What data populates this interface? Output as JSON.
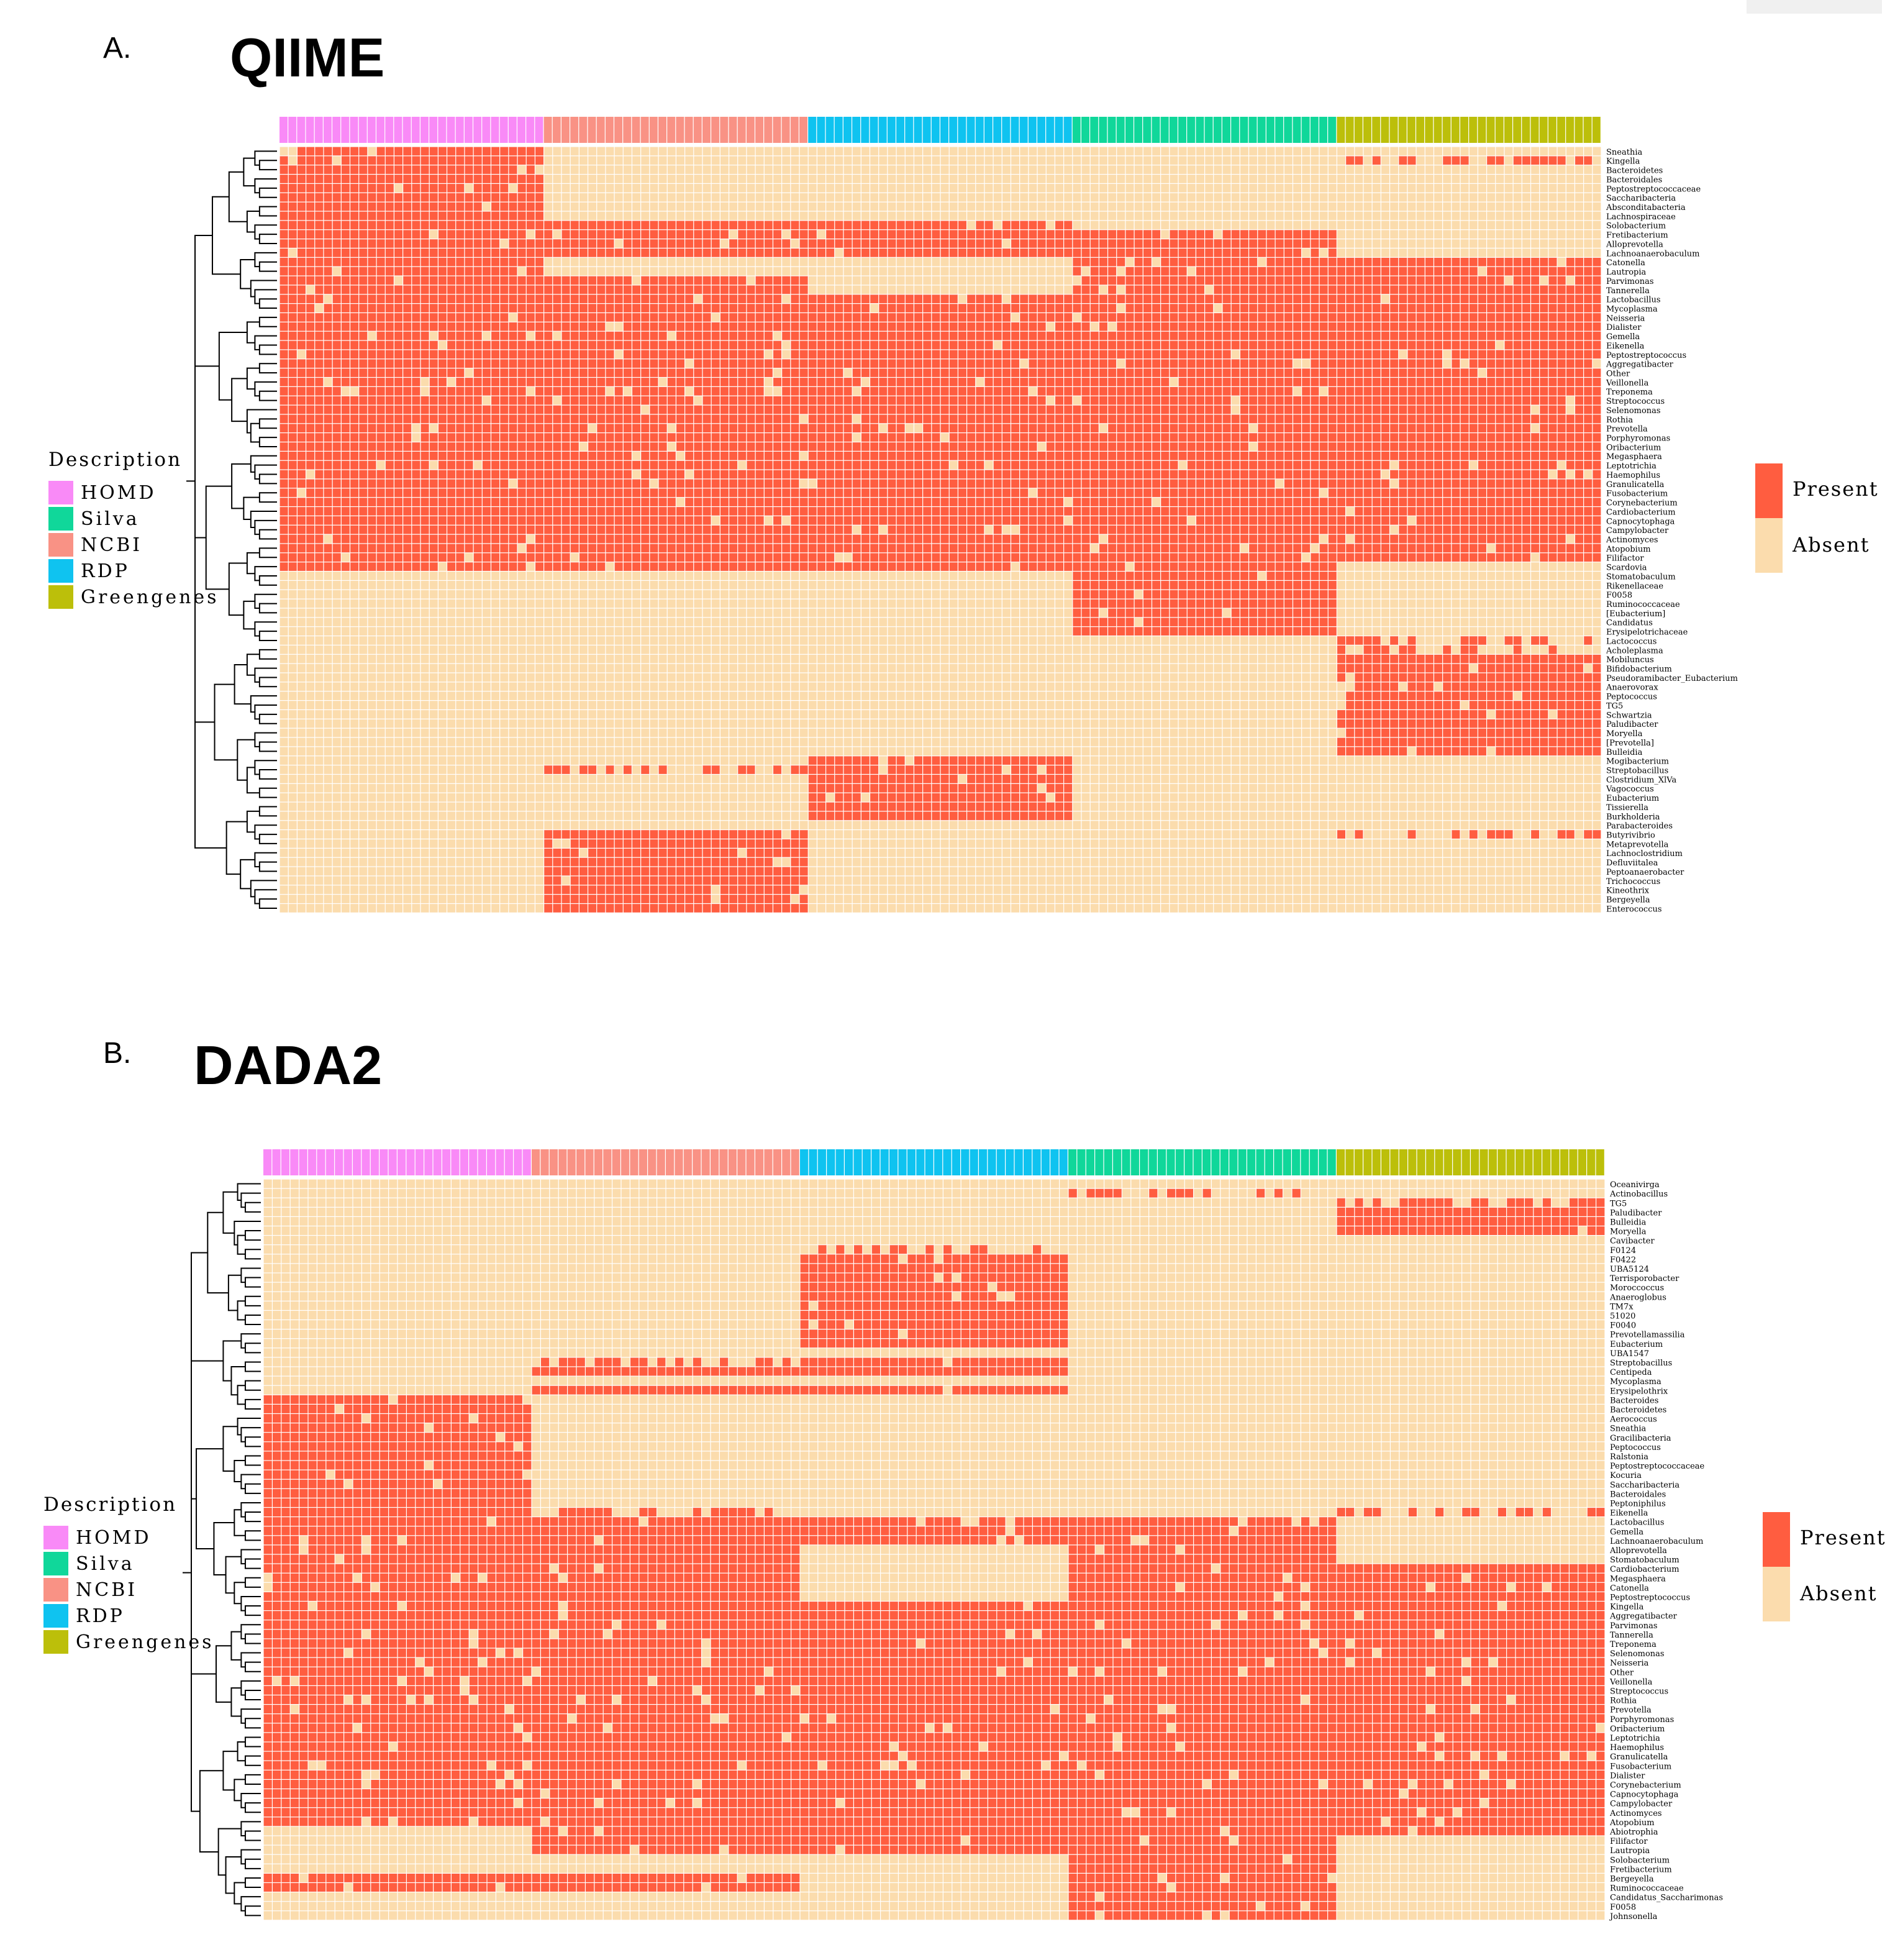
{
  "colors": {
    "present": "#ff5d40",
    "absent": "#fbdcad",
    "HOMD": "#f98af7",
    "NCBI": "#f99285",
    "RDP": "#0fc3f0",
    "Silva": "#10d79a",
    "Greengenes": "#bcbf0a"
  },
  "legend": {
    "title": "Description",
    "items": [
      {
        "label": "HOMD",
        "color": "#f98af7"
      },
      {
        "label": "Silva",
        "color": "#10d79a"
      },
      {
        "label": "NCBI",
        "color": "#f99285"
      },
      {
        "label": "RDP",
        "color": "#0fc3f0"
      },
      {
        "label": "Greengenes",
        "color": "#bcbf0a"
      }
    ],
    "present": "Present",
    "absent": "Absent"
  },
  "chart_data": [
    {
      "type": "heatmap",
      "panel": "A.",
      "title": "QIIME",
      "column_groups": [
        "HOMD",
        "NCBI",
        "RDP",
        "Silva",
        "Greengenes"
      ],
      "columns_per_group": 30,
      "values_legend": [
        "Present",
        "Absent"
      ],
      "rows": [
        {
          "name": "Sneathia",
          "pattern": "PAAAA"
        },
        {
          "name": "Kingella",
          "pattern": "PAAAS"
        },
        {
          "name": "Bacteroidetes",
          "pattern": "PAAAA"
        },
        {
          "name": "Bacteroidales",
          "pattern": "PAAAA"
        },
        {
          "name": "Peptostreptococcaceae",
          "pattern": "PAAAA"
        },
        {
          "name": "Saccharibacteria",
          "pattern": "PAAAA"
        },
        {
          "name": "Absconditabacteria",
          "pattern": "PAAAA"
        },
        {
          "name": "Lachnospiraceae",
          "pattern": "PAAAA"
        },
        {
          "name": "Solobacterium",
          "pattern": "PPPAA"
        },
        {
          "name": "Fretibacterium",
          "pattern": "PPPPA"
        },
        {
          "name": "Alloprevotella",
          "pattern": "PPPPA"
        },
        {
          "name": "Lachnoanaerobaculum",
          "pattern": "PPPPA"
        },
        {
          "name": "Catonella",
          "pattern": "PAAPP"
        },
        {
          "name": "Lautropia",
          "pattern": "PAAPP"
        },
        {
          "name": "Parvimonas",
          "pattern": "PPAPP"
        },
        {
          "name": "Tannerella",
          "pattern": "PPAPP"
        },
        {
          "name": "Lactobacillus",
          "pattern": "PPPPP"
        },
        {
          "name": "Mycoplasma",
          "pattern": "PPPPP"
        },
        {
          "name": "Neisseria",
          "pattern": "PPPPP"
        },
        {
          "name": "Dialister",
          "pattern": "PPPPP"
        },
        {
          "name": "Gemella",
          "pattern": "PPPPP"
        },
        {
          "name": "Eikenella",
          "pattern": "PPPPP"
        },
        {
          "name": "Peptostreptococcus",
          "pattern": "PPPPP"
        },
        {
          "name": "Aggregatibacter",
          "pattern": "PPPPP"
        },
        {
          "name": "Other",
          "pattern": "PPPPP"
        },
        {
          "name": "Veillonella",
          "pattern": "PPPPP"
        },
        {
          "name": "Treponema",
          "pattern": "PPPPP"
        },
        {
          "name": "Streptococcus",
          "pattern": "PPPPP"
        },
        {
          "name": "Selenomonas",
          "pattern": "PPPPP"
        },
        {
          "name": "Rothia",
          "pattern": "PPPPP"
        },
        {
          "name": "Prevotella",
          "pattern": "PPPPP"
        },
        {
          "name": "Porphyromonas",
          "pattern": "PPPPP"
        },
        {
          "name": "Oribacterium",
          "pattern": "PPPPP"
        },
        {
          "name": "Megasphaera",
          "pattern": "PPPPP"
        },
        {
          "name": "Leptotrichia",
          "pattern": "PPPPP"
        },
        {
          "name": "Haemophilus",
          "pattern": "PPPPP"
        },
        {
          "name": "Granulicatella",
          "pattern": "PPPPP"
        },
        {
          "name": "Fusobacterium",
          "pattern": "PPPPP"
        },
        {
          "name": "Corynebacterium",
          "pattern": "PPPPP"
        },
        {
          "name": "Cardiobacterium",
          "pattern": "PPPPP"
        },
        {
          "name": "Capnocytophaga",
          "pattern": "PPPPP"
        },
        {
          "name": "Campylobacter",
          "pattern": "PPPPP"
        },
        {
          "name": "Actinomyces",
          "pattern": "PPPPP"
        },
        {
          "name": "Atopobium",
          "pattern": "PPPPP"
        },
        {
          "name": "Filifactor",
          "pattern": "PPPPP"
        },
        {
          "name": "Scardovia",
          "pattern": "PPPPA"
        },
        {
          "name": "Stomatobaculum",
          "pattern": "AAAPA"
        },
        {
          "name": "Rikenellaceae",
          "pattern": "AAAPA"
        },
        {
          "name": "F0058",
          "pattern": "AAAPA"
        },
        {
          "name": "Ruminococcaceae",
          "pattern": "AAAPA"
        },
        {
          "name": "[Eubacterium]",
          "pattern": "AAAPA"
        },
        {
          "name": "Candidatus",
          "pattern": "AAAPA"
        },
        {
          "name": "Erysipelotrichaceae",
          "pattern": "AAAPA"
        },
        {
          "name": "Lactococcus",
          "pattern": "AAAAS"
        },
        {
          "name": "Acholeplasma",
          "pattern": "AAAAS"
        },
        {
          "name": "Mobiluncus",
          "pattern": "AAAAP"
        },
        {
          "name": "Bifidobacterium",
          "pattern": "AAAAP"
        },
        {
          "name": "Pseudoramibacter_Eubacterium",
          "pattern": "AAAAP"
        },
        {
          "name": "Anaerovorax",
          "pattern": "AAAAP"
        },
        {
          "name": "Peptococcus",
          "pattern": "AAAAP"
        },
        {
          "name": "TG5",
          "pattern": "AAAAP"
        },
        {
          "name": "Schwartzia",
          "pattern": "AAAAP"
        },
        {
          "name": "Paludibacter",
          "pattern": "AAAAP"
        },
        {
          "name": "Moryella",
          "pattern": "AAAAP"
        },
        {
          "name": "[Prevotella]",
          "pattern": "AAAAP"
        },
        {
          "name": "Bulleidia",
          "pattern": "AAAAP"
        },
        {
          "name": "Mogibacterium",
          "pattern": "AAPAA"
        },
        {
          "name": "Streptobacillus",
          "pattern": "ASPAA"
        },
        {
          "name": "Clostridium_XlVa",
          "pattern": "AAPAA"
        },
        {
          "name": "Vagococcus",
          "pattern": "AAPAA"
        },
        {
          "name": "Eubacterium",
          "pattern": "AAPAA"
        },
        {
          "name": "Tissierella",
          "pattern": "AAPAA"
        },
        {
          "name": "Burkholderia",
          "pattern": "AAPAA"
        },
        {
          "name": "Parabacteroides",
          "pattern": "AAAAA"
        },
        {
          "name": "Butyrivibrio",
          "pattern": "APAAS"
        },
        {
          "name": "Metaprevotella",
          "pattern": "APAAA"
        },
        {
          "name": "Lachnoclostridium",
          "pattern": "APAAA"
        },
        {
          "name": "Defluviitalea",
          "pattern": "APAAA"
        },
        {
          "name": "Peptoanaerobacter",
          "pattern": "APAAA"
        },
        {
          "name": "Trichococcus",
          "pattern": "APAAA"
        },
        {
          "name": "Kineothrix",
          "pattern": "APAAA"
        },
        {
          "name": "Bergeyella",
          "pattern": "APAAA"
        },
        {
          "name": "Enterococcus",
          "pattern": "APAAA"
        }
      ]
    },
    {
      "type": "heatmap",
      "panel": "B.",
      "title": "DADA2",
      "column_groups": [
        "HOMD",
        "NCBI",
        "RDP",
        "Silva",
        "Greengenes"
      ],
      "columns_per_group": 30,
      "values_legend": [
        "Present",
        "Absent"
      ],
      "rows": [
        {
          "name": "Oceanivirga",
          "pattern": "AAAAA"
        },
        {
          "name": "Actinobacillus",
          "pattern": "AAASA"
        },
        {
          "name": "TG5",
          "pattern": "AAAAS"
        },
        {
          "name": "Paludibacter",
          "pattern": "AAAAP"
        },
        {
          "name": "Bulleidia",
          "pattern": "AAAAP"
        },
        {
          "name": "Moryella",
          "pattern": "AAAAP"
        },
        {
          "name": "Cavibacter",
          "pattern": "AAAAA"
        },
        {
          "name": "F0124",
          "pattern": "AASAA"
        },
        {
          "name": "F0422",
          "pattern": "AAPAA"
        },
        {
          "name": "UBA5124",
          "pattern": "AAPAA"
        },
        {
          "name": "Terrisporobacter",
          "pattern": "AAPAA"
        },
        {
          "name": "Moroccoccus",
          "pattern": "AAPAA"
        },
        {
          "name": "Anaeroglobus",
          "pattern": "AAPAA"
        },
        {
          "name": "TM7x",
          "pattern": "AAPAA"
        },
        {
          "name": "51020",
          "pattern": "AAPAA"
        },
        {
          "name": "F0040",
          "pattern": "AAPAA"
        },
        {
          "name": "Prevotellamassilia",
          "pattern": "AAPAA"
        },
        {
          "name": "Eubacterium",
          "pattern": "AAPAA"
        },
        {
          "name": "UBA1547",
          "pattern": "AAAAA"
        },
        {
          "name": "Streptobacillus",
          "pattern": "ASPAA"
        },
        {
          "name": "Centipeda",
          "pattern": "APPAA"
        },
        {
          "name": "Mycoplasma",
          "pattern": "AAAAA"
        },
        {
          "name": "Erysipelothrix",
          "pattern": "APPAA"
        },
        {
          "name": "Bacteroides",
          "pattern": "PAAAA"
        },
        {
          "name": "Bacteroidetes",
          "pattern": "PAAAA"
        },
        {
          "name": "Aerococcus",
          "pattern": "PAAAA"
        },
        {
          "name": "Sneathia",
          "pattern": "PAAAA"
        },
        {
          "name": "Gracilibacteria",
          "pattern": "PAAAA"
        },
        {
          "name": "Peptococcus",
          "pattern": "PAAAA"
        },
        {
          "name": "Ralstonia",
          "pattern": "PAAAA"
        },
        {
          "name": "Peptostreptococcaceae",
          "pattern": "PAAAA"
        },
        {
          "name": "Kocuria",
          "pattern": "PAAAA"
        },
        {
          "name": "Saccharibacteria",
          "pattern": "PAAAA"
        },
        {
          "name": "Bacteroidales",
          "pattern": "PAAAA"
        },
        {
          "name": "Peptoniphilus",
          "pattern": "PAAAA"
        },
        {
          "name": "Eikenella",
          "pattern": "PSAAS"
        },
        {
          "name": "Lactobacillus",
          "pattern": "PPPPA"
        },
        {
          "name": "Gemella",
          "pattern": "PPPPA"
        },
        {
          "name": "Lachnoanaerobaculum",
          "pattern": "PPPPA"
        },
        {
          "name": "Alloprevotella",
          "pattern": "PPAPA"
        },
        {
          "name": "Stomatobaculum",
          "pattern": "PPAPA"
        },
        {
          "name": "Cardiobacterium",
          "pattern": "PPAPP"
        },
        {
          "name": "Megasphaera",
          "pattern": "PPAPP"
        },
        {
          "name": "Catonella",
          "pattern": "PPAPP"
        },
        {
          "name": "Peptostreptococcus",
          "pattern": "PPAPP"
        },
        {
          "name": "Kingella",
          "pattern": "PPPPP"
        },
        {
          "name": "Aggregatibacter",
          "pattern": "PPPPP"
        },
        {
          "name": "Parvimonas",
          "pattern": "PPPPP"
        },
        {
          "name": "Tannerella",
          "pattern": "PPPPP"
        },
        {
          "name": "Treponema",
          "pattern": "PPPPP"
        },
        {
          "name": "Selenomonas",
          "pattern": "PPPPP"
        },
        {
          "name": "Neisseria",
          "pattern": "PPPPP"
        },
        {
          "name": "Other",
          "pattern": "PPPPP"
        },
        {
          "name": "Veillonella",
          "pattern": "PPPPP"
        },
        {
          "name": "Streptococcus",
          "pattern": "PPPPP"
        },
        {
          "name": "Rothia",
          "pattern": "PPPPP"
        },
        {
          "name": "Prevotella",
          "pattern": "PPPPP"
        },
        {
          "name": "Porphyromonas",
          "pattern": "PPPPP"
        },
        {
          "name": "Oribacterium",
          "pattern": "PPPPP"
        },
        {
          "name": "Leptotrichia",
          "pattern": "PPPPP"
        },
        {
          "name": "Haemophilus",
          "pattern": "PPPPP"
        },
        {
          "name": "Granulicatella",
          "pattern": "PPPPP"
        },
        {
          "name": "Fusobacterium",
          "pattern": "PPPPP"
        },
        {
          "name": "Dialister",
          "pattern": "PPPPP"
        },
        {
          "name": "Corynebacterium",
          "pattern": "PPPPP"
        },
        {
          "name": "Capnocytophaga",
          "pattern": "PPPPP"
        },
        {
          "name": "Campylobacter",
          "pattern": "PPPPP"
        },
        {
          "name": "Actinomyces",
          "pattern": "PPPPP"
        },
        {
          "name": "Atopobium",
          "pattern": "PPPPP"
        },
        {
          "name": "Abiotrophia",
          "pattern": "APPPP"
        },
        {
          "name": "Filifactor",
          "pattern": "APPPA"
        },
        {
          "name": "Lautropia",
          "pattern": "APPPA"
        },
        {
          "name": "Solobacterium",
          "pattern": "AAAPA"
        },
        {
          "name": "Fretibacterium",
          "pattern": "AAAPA"
        },
        {
          "name": "Bergeyella",
          "pattern": "PPAPA"
        },
        {
          "name": "Ruminococcaceae",
          "pattern": "PPAPA"
        },
        {
          "name": "Candidatus_Saccharimonas",
          "pattern": "AAAPA"
        },
        {
          "name": "F0058",
          "pattern": "AAAPA"
        },
        {
          "name": "Johnsonella",
          "pattern": "AAAPA"
        }
      ]
    }
  ]
}
